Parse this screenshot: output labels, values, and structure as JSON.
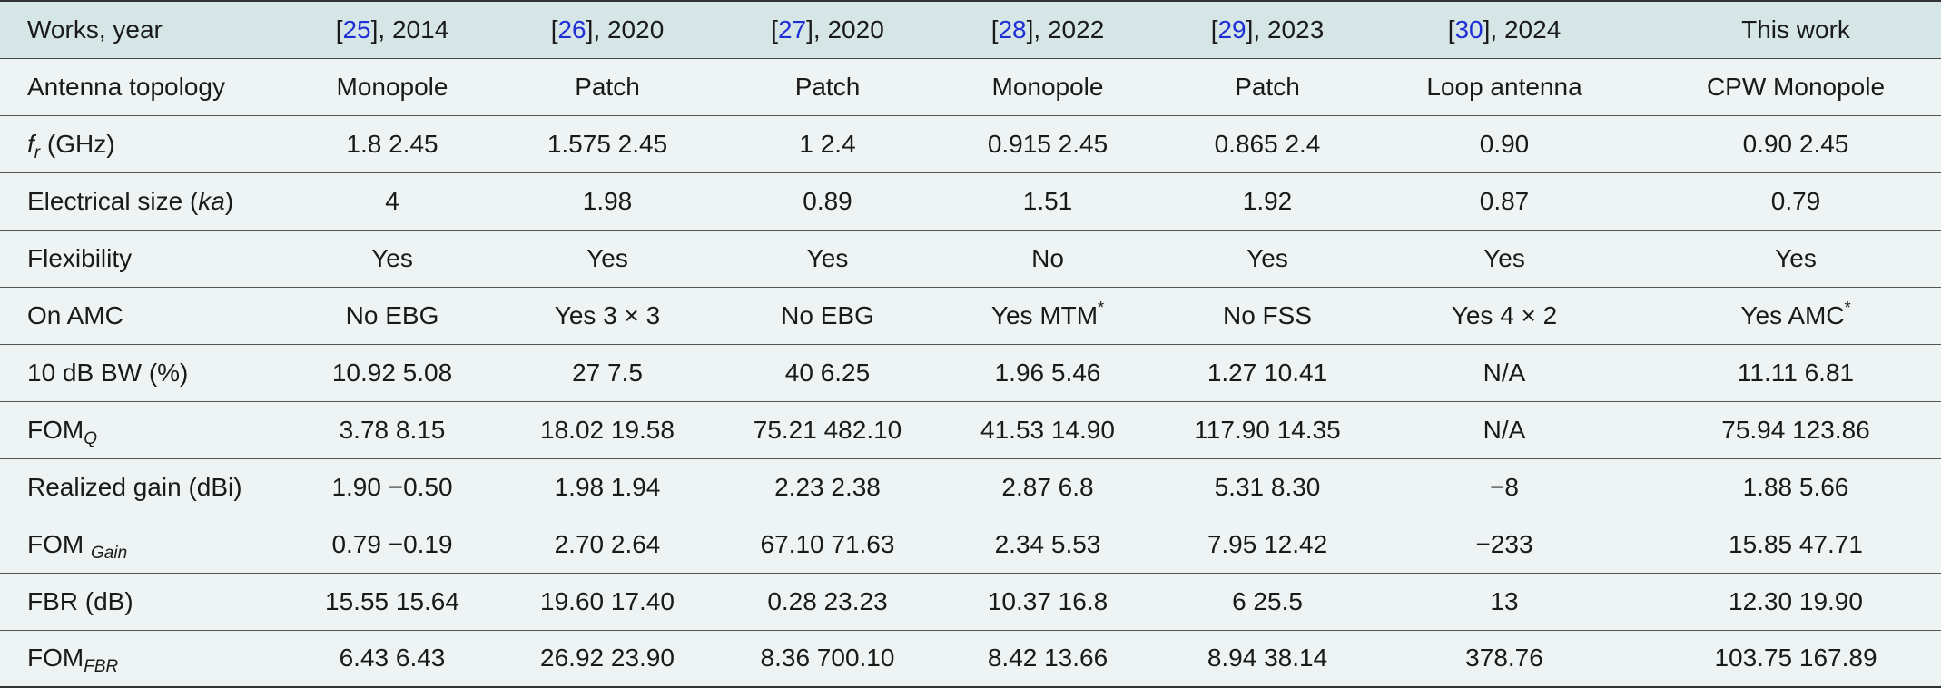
{
  "header": {
    "first": "Works, year",
    "refs": [
      {
        "ref": "25",
        "year": ", 2014"
      },
      {
        "ref": "26",
        "year": ", 2020"
      },
      {
        "ref": "27",
        "year": ", 2020"
      },
      {
        "ref": "28",
        "year": ", 2022"
      },
      {
        "ref": "29",
        "year": ", 2023"
      },
      {
        "ref": "30",
        "year": ", 2024"
      }
    ],
    "last": "This work"
  },
  "rows": [
    {
      "label": "Antenna topology",
      "cells": [
        "Monopole",
        "Patch",
        "Patch",
        "Monopole",
        "Patch",
        "Loop antenna",
        "CPW Monopole"
      ]
    },
    {
      "label_pre": "f",
      "label_sub": "r",
      "label_post": " (GHz)",
      "cells": [
        "1.8 2.45",
        "1.575 2.45",
        "1 2.4",
        "0.915 2.45",
        "0.865 2.4",
        "0.90",
        "0.90 2.45"
      ]
    },
    {
      "label_pre": "Electrical size (",
      "label_it": "ka",
      "label_post": ")",
      "cells": [
        "4",
        "1.98",
        "0.89",
        "1.51",
        "1.92",
        "0.87",
        "0.79"
      ]
    },
    {
      "label": "Flexibility",
      "cells": [
        "Yes",
        "Yes",
        "Yes",
        "No",
        "Yes",
        "Yes",
        "Yes"
      ]
    },
    {
      "label": "On AMC",
      "cells": [
        "No EBG",
        "Yes 3 × 3",
        "No EBG",
        "Yes MTM",
        "No FSS",
        "Yes 4 × 2",
        "Yes AMC"
      ],
      "star": "*"
    },
    {
      "label": "10 dB BW (%)",
      "cells": [
        "10.92 5.08",
        "27 7.5",
        "40 6.25",
        "1.96 5.46",
        "1.27 10.41",
        "N/A",
        "11.11 6.81"
      ]
    },
    {
      "label_pre": "FOM",
      "label_sub": "Q",
      "cells": [
        "3.78 8.15",
        "18.02 19.58",
        "75.21 482.10",
        "41.53 14.90",
        "117.90 14.35",
        "N/A",
        "75.94 123.86"
      ]
    },
    {
      "label": "Realized gain (dBi)",
      "cells": [
        "1.90 −0.50",
        "1.98 1.94",
        "2.23 2.38",
        "2.87 6.8",
        "5.31 8.30",
        "−8",
        "1.88 5.66"
      ]
    },
    {
      "label_pre": "FOM ",
      "label_sub": "Gain",
      "cells": [
        "0.79 −0.19",
        "2.70 2.64",
        "67.10 71.63",
        "2.34 5.53",
        "7.95 12.42",
        "−233",
        "15.85 47.71"
      ]
    },
    {
      "label": "FBR (dB)",
      "cells": [
        "15.55 15.64",
        "19.60 17.40",
        "0.28 23.23",
        "10.37 16.8",
        "6 25.5",
        "13",
        "12.30 19.90"
      ]
    },
    {
      "label_pre": "FOM",
      "label_sub": "FBR",
      "cells": [
        "6.43 6.43",
        "26.92 23.90",
        "8.36 700.10",
        "8.42 13.66",
        "8.94 38.14",
        "378.76",
        "103.75 167.89"
      ]
    }
  ]
}
